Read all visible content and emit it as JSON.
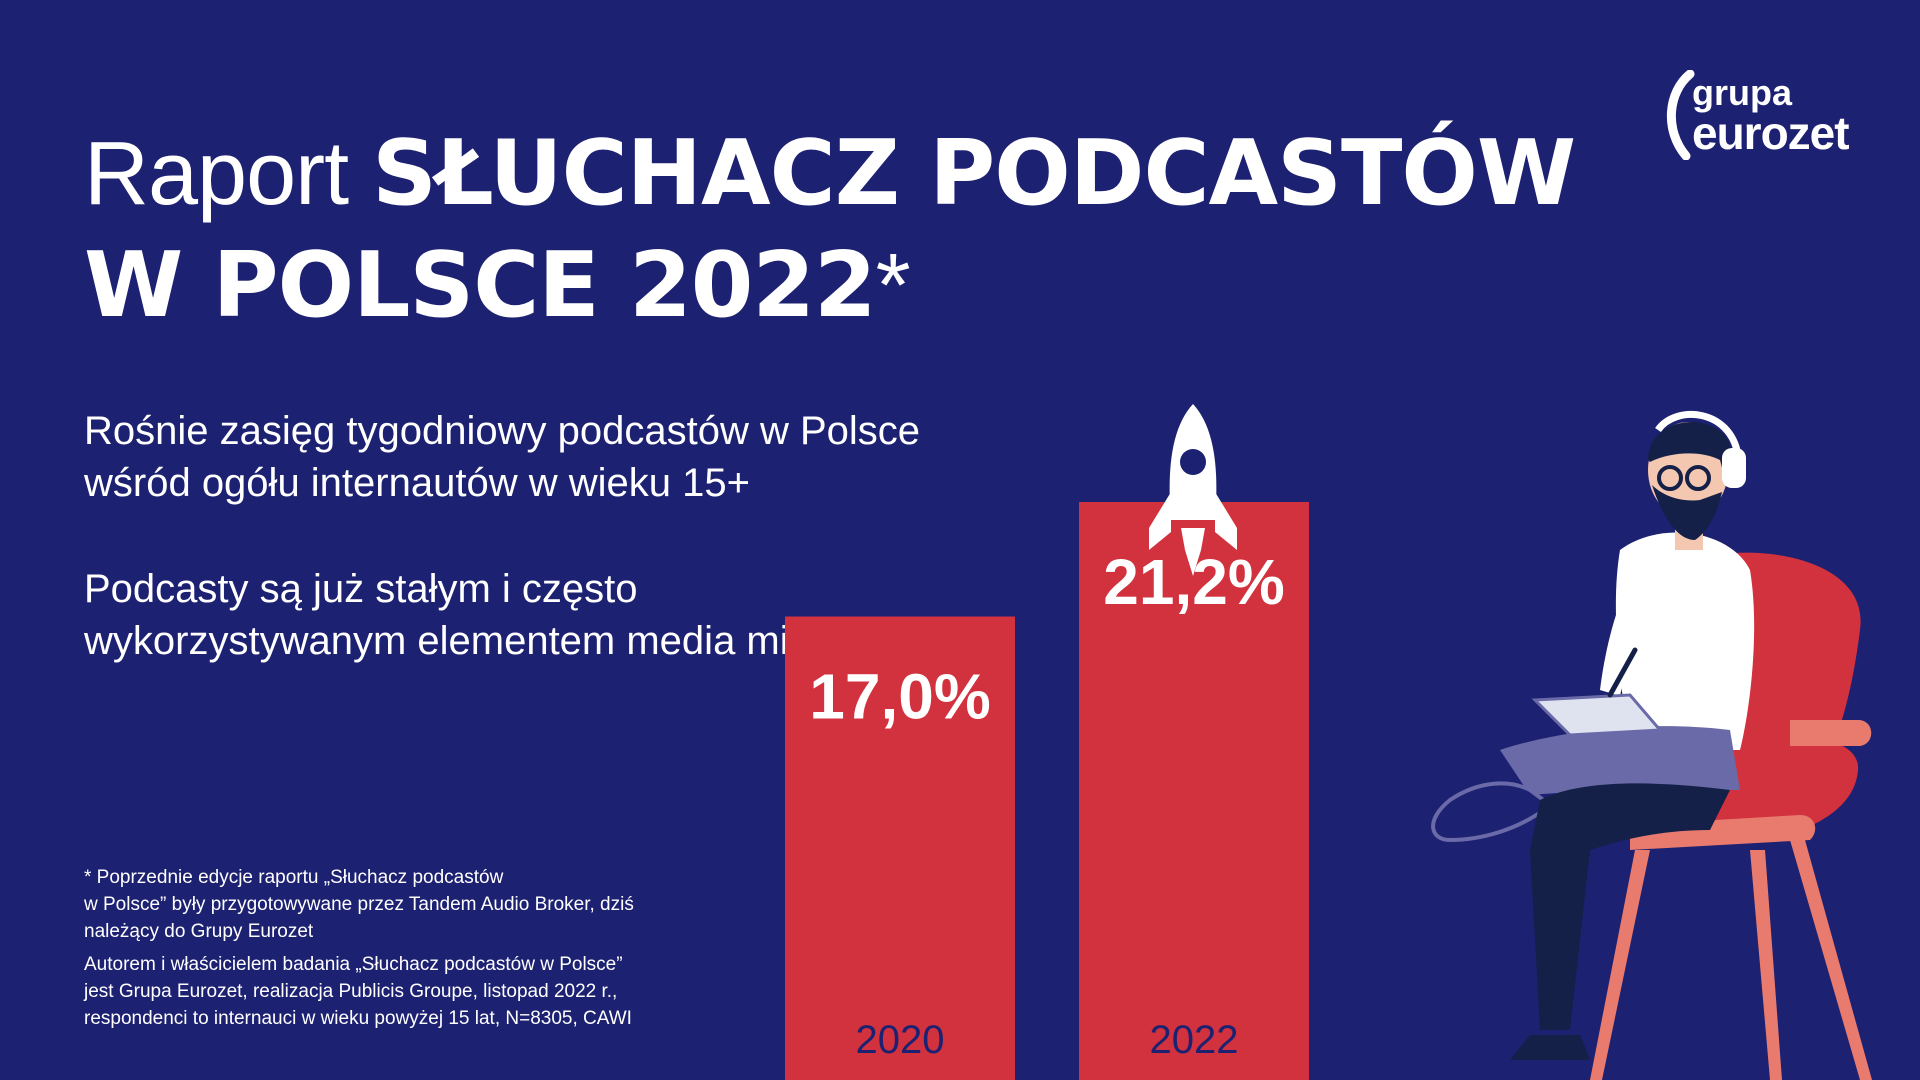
{
  "title": {
    "light": "Raport ",
    "bold_line1": "SŁUCHACZ PODCASTÓW",
    "bold_line2": "W POLSCE 2022",
    "asterisk": "*"
  },
  "subtitle_1": {
    "line1": "Rośnie zasięg tygodniowy podcastów w Polsce",
    "line2": "wśród ogółu internautów w wieku 15+"
  },
  "subtitle_2": {
    "line1": "Podcasty są już stałym i często",
    "line2": "wykorzystywanym elementem media miksu"
  },
  "footnote_1": {
    "line1": "* Poprzednie edycje raportu „Słuchacz podcastów",
    "line2": "w Polsce” były przygotowywane przez Tandem Audio Broker, dziś",
    "line3": "należący do Grupy Eurozet"
  },
  "footnote_2": {
    "line1": "Autorem i właścicielem badania „Słuchacz podcastów w Polsce”",
    "line2": "jest Grupa Eurozet, realizacja Publicis Groupe, listopad 2022 r.,",
    "line3": "respondenci to internauci w wieku powyżej 15 lat, N=8305, CAWI"
  },
  "logo": {
    "top": "grupa",
    "bottom": "eurozet"
  },
  "icons": [
    "rocket-icon",
    "podcast-listener-illustration",
    "eurozet-logo"
  ],
  "colors": {
    "background": "#1d2171",
    "bar": "#d1323e",
    "year_label": "#1d2171",
    "chair": "#d1323e",
    "chair_light": "#e97a6e"
  },
  "chart_data": {
    "type": "bar",
    "categories": [
      "2020",
      "2022"
    ],
    "values": [
      17.0,
      21.2
    ],
    "value_labels": [
      "17,0%",
      "21,2%"
    ],
    "unit": "%",
    "title": "",
    "xlabel": "",
    "ylabel": "",
    "grid": false
  }
}
